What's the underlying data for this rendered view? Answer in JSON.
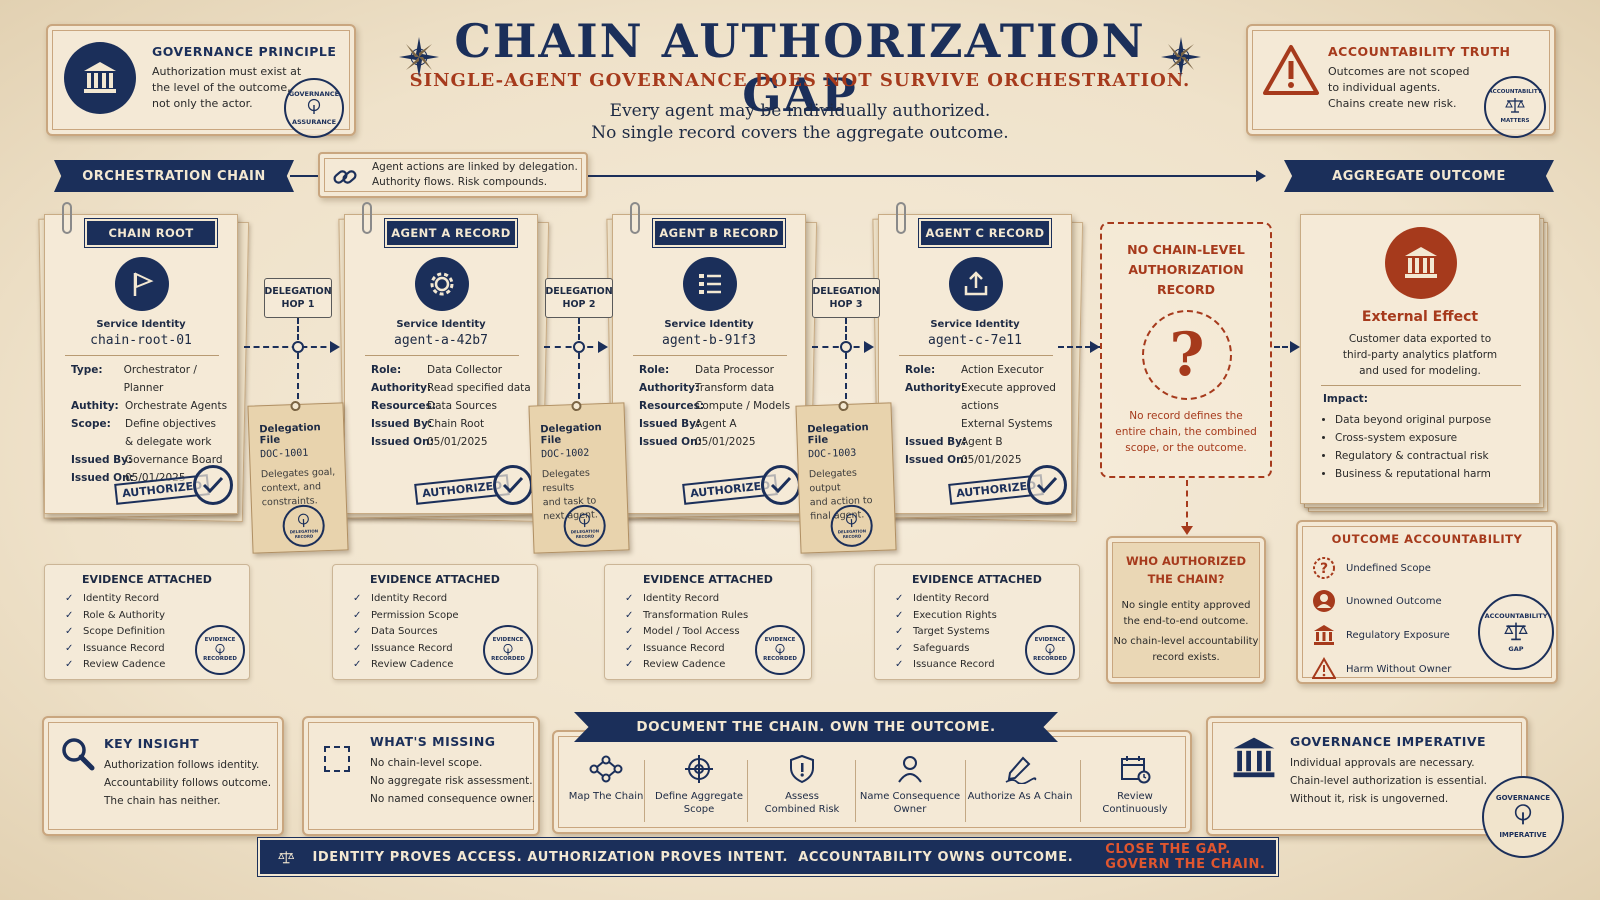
{
  "header": {
    "title": "CHAIN AUTHORIZATION GAP",
    "subtitle": "SINGLE-AGENT GOVERNANCE DOES NOT SURVIVE ORCHESTRATION.",
    "lede_line1": "Every agent may be individually authorized.",
    "lede_line2": "No single record covers the aggregate outcome."
  },
  "governance_principle": {
    "title": "GOVERNANCE PRINCIPLE",
    "text": [
      "Authorization must exist at",
      "the level of the outcome,",
      "not only the actor."
    ],
    "seal_top": "GOVERNANCE",
    "seal_bottom": "ASSURANCE"
  },
  "accountability_truth": {
    "title": "ACCOUNTABILITY TRUTH",
    "text": [
      "Outcomes are not scoped",
      "to individual agents.",
      "Chains create new risk."
    ],
    "seal_top": "ACCOUNTABILITY",
    "seal_bottom": "MATTERS"
  },
  "chain_bar": {
    "left_label": "ORCHESTRATION CHAIN",
    "note_line1": "Agent actions are linked by delegation.",
    "note_line2": "Authority flows. Risk compounds.",
    "right_label": "AGGREGATE OUTCOME"
  },
  "cards": [
    {
      "tag": "CHAIN ROOT",
      "icon": "flag-icon",
      "si_label": "Service Identity",
      "si_value": "chain-root-01",
      "rows": [
        {
          "k": "Type:",
          "v": "Orchestrator / Planner"
        },
        {
          "k": "Authity:",
          "v": "Orchestrate Agents"
        },
        {
          "k": "Scope:",
          "v": "Define objectives"
        },
        {
          "k": "",
          "v": "& delegate work"
        },
        {
          "k": "Issued By:",
          "v": "Governance Board"
        },
        {
          "k": "Issued On:",
          "v": "05/01/2025"
        }
      ],
      "stamp": "AUTHORIZED"
    },
    {
      "tag": "AGENT A RECORD",
      "icon": "gear-icon",
      "si_label": "Service Identity",
      "si_value": "agent-a-42b7",
      "rows": [
        {
          "k": "Role:",
          "v": "Data Collector"
        },
        {
          "k": "Authority:",
          "v": "Read specified data"
        },
        {
          "k": "Resources:",
          "v": "Data Sources"
        },
        {
          "k": "Issued By:",
          "v": "Chain Root"
        },
        {
          "k": "Issued On:",
          "v": "05/01/2025"
        }
      ],
      "stamp": "AUTHORIZED"
    },
    {
      "tag": "AGENT B RECORD",
      "icon": "checklist-icon",
      "si_label": "Service Identity",
      "si_value": "agent-b-91f3",
      "rows": [
        {
          "k": "Role:",
          "v": "Data Processor"
        },
        {
          "k": "Authority:",
          "v": "Transform data"
        },
        {
          "k": "Resources:",
          "v": "Compute / Models"
        },
        {
          "k": "Issued By:",
          "v": "Agent A"
        },
        {
          "k": "Issued On:",
          "v": "05/01/2025"
        }
      ],
      "stamp": "AUTHORIZED"
    },
    {
      "tag": "AGENT C RECORD",
      "icon": "upload-icon",
      "si_label": "Service Identity",
      "si_value": "agent-c-7e11",
      "rows": [
        {
          "k": "Role:",
          "v": "Action Executor"
        },
        {
          "k": "Authority:",
          "v": "Execute approved"
        },
        {
          "k": "",
          "v": "actions"
        },
        {
          "k": "",
          "v": "External Systems"
        },
        {
          "k": "Issued By:",
          "v": "Agent B"
        },
        {
          "k": "Issued On:",
          "v": "05/01/2025"
        }
      ],
      "stamp": "AUTHORIZED"
    }
  ],
  "hops": [
    {
      "label_line1": "DELEGATION",
      "label_line2": "HOP 1",
      "file_title": "Delegation File",
      "doc": "DOC-1001",
      "desc": [
        "Delegates goal,",
        "context, and",
        "constraints."
      ],
      "seal": "DELEGATION RECORD"
    },
    {
      "label_line1": "DELEGATION",
      "label_line2": "HOP 2",
      "file_title": "Delegation File",
      "doc": "DOC-1002",
      "desc": [
        "Delegates results",
        "and task to",
        "next agent."
      ],
      "seal": "DELEGATION RECORD"
    },
    {
      "label_line1": "DELEGATION",
      "label_line2": "HOP 3",
      "file_title": "Delegation File",
      "doc": "DOC-1003",
      "desc": [
        "Delegates output",
        "and action to",
        "final agent."
      ],
      "seal": "DELEGATION RECORD"
    }
  ],
  "evidence": [
    {
      "title": "EVIDENCE ATTACHED",
      "items": [
        "Identity Record",
        "Role & Authority",
        "Scope Definition",
        "Issuance Record",
        "Review Cadence"
      ],
      "seal_top": "EVIDENCE",
      "seal_bottom": "RECORDED"
    },
    {
      "title": "EVIDENCE ATTACHED",
      "items": [
        "Identity Record",
        "Permission Scope",
        "Data Sources",
        "Issuance Record",
        "Review Cadence"
      ],
      "seal_top": "EVIDENCE",
      "seal_bottom": "RECORDED"
    },
    {
      "title": "EVIDENCE ATTACHED",
      "items": [
        "Identity Record",
        "Transformation Rules",
        "Model / Tool Access",
        "Issuance Record",
        "Review Cadence"
      ],
      "seal_top": "EVIDENCE",
      "seal_bottom": "RECORDED"
    },
    {
      "title": "EVIDENCE ATTACHED",
      "items": [
        "Identity Record",
        "Execution Rights",
        "Target Systems",
        "Safeguards",
        "Issuance Record"
      ],
      "seal_top": "EVIDENCE",
      "seal_bottom": "RECORDED"
    }
  ],
  "gap": {
    "title": [
      "NO CHAIN-LEVEL",
      "AUTHORIZATION",
      "RECORD"
    ],
    "desc": [
      "No record defines the",
      "entire chain, the combined",
      "scope, or the outcome."
    ]
  },
  "who_authorized": {
    "title": [
      "WHO AUTHORIZED",
      "THE CHAIN?"
    ],
    "desc1": [
      "No single entity approved",
      "the end-to-end outcome."
    ],
    "desc2": [
      "No chain-level accountability",
      "record exists."
    ]
  },
  "external_effect": {
    "title": "External Effect",
    "desc": [
      "Customer data exported to",
      "third-party analytics platform",
      "and used for modeling."
    ],
    "impact_label": "Impact:",
    "impacts": [
      "Data beyond original purpose",
      "Cross-system exposure",
      "Regulatory & contractual risk",
      "Business & reputational harm"
    ]
  },
  "outcome_accountability": {
    "title": "OUTCOME ACCOUNTABILITY",
    "items": [
      {
        "icon": "question-icon",
        "label": "Undefined Scope"
      },
      {
        "icon": "person-icon",
        "label": "Unowned Outcome"
      },
      {
        "icon": "institution-icon",
        "label": "Regulatory Exposure"
      },
      {
        "icon": "warning-icon",
        "label": "Harm Without Owner"
      }
    ],
    "seal_top": "ACCOUNTABILITY",
    "seal_bottom": "GAP"
  },
  "key_insight": {
    "title": "KEY INSIGHT",
    "text": [
      "Authorization follows identity.",
      "Accountability follows outcome.",
      "The chain has neither."
    ]
  },
  "whats_missing": {
    "title": "WHAT'S MISSING",
    "text": [
      "No chain-level scope.",
      "No aggregate risk assessment.",
      "No named consequence owner."
    ]
  },
  "document_chain": {
    "title": "DOCUMENT THE CHAIN. OWN THE OUTCOME.",
    "actions": [
      {
        "icon": "network-icon",
        "line1": "Map The Chain",
        "line2": ""
      },
      {
        "icon": "target-icon",
        "line1": "Define Aggregate",
        "line2": "Scope"
      },
      {
        "icon": "shield-alert-icon",
        "line1": "Assess",
        "line2": "Combined Risk"
      },
      {
        "icon": "person-icon",
        "line1": "Name Consequence",
        "line2": "Owner"
      },
      {
        "icon": "pen-signature-icon",
        "line1": "Authorize As A Chain",
        "line2": ""
      },
      {
        "icon": "calendar-icon",
        "line1": "Review",
        "line2": "Continuously"
      }
    ]
  },
  "governance_imperative": {
    "title": "GOVERNANCE IMPERATIVE",
    "text": [
      "Individual approvals are necessary.",
      "Chain-level authorization is essential.",
      "Without it, risk is ungoverned."
    ],
    "seal_top": "GOVERNANCE",
    "seal_bottom": "IMPERATIVE"
  },
  "footer": {
    "main": "IDENTITY PROVES ACCESS. AUTHORIZATION PROVES INTENT.  ACCOUNTABILITY OWNS OUTCOME.",
    "cta": "CLOSE THE GAP. GOVERN THE CHAIN."
  },
  "colors": {
    "navy": "#1b2f5a",
    "rust": "#a63a1c",
    "parchment": "#f4e9d6"
  }
}
